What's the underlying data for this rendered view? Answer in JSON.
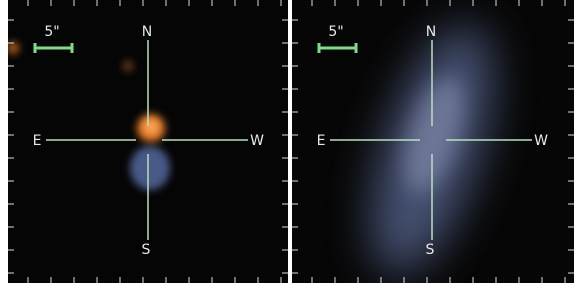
{
  "panels": [
    {
      "scale_label": "5\"",
      "north": "N",
      "south": "S",
      "east": "E",
      "west": "W"
    },
    {
      "scale_label": "5\"",
      "north": "N",
      "south": "S",
      "east": "E",
      "west": "W"
    }
  ]
}
